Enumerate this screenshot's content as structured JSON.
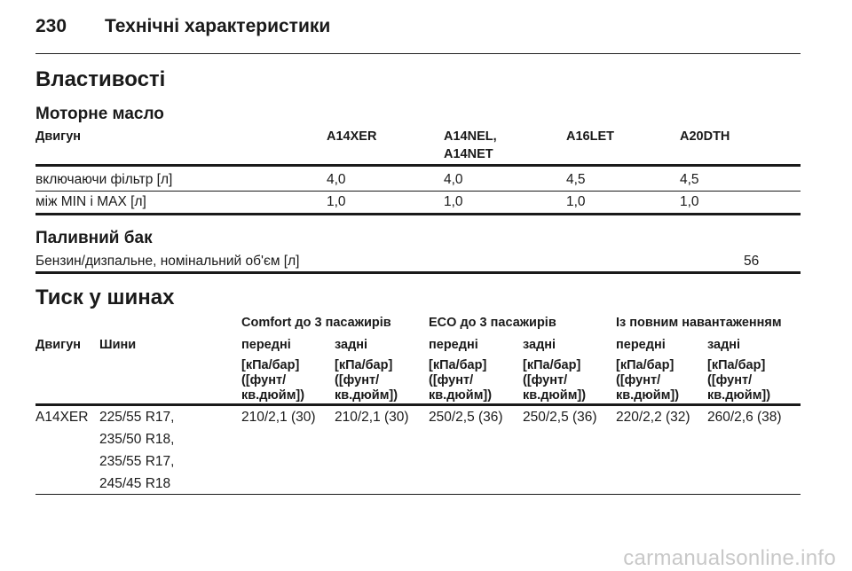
{
  "header": {
    "page_number": "230",
    "title": "Технічні характеристики"
  },
  "properties": {
    "title": "Властивості"
  },
  "engine_oil": {
    "title": "Моторне масло",
    "col_engine": "Двигун",
    "engines": [
      "A14XER",
      "A14NEL,",
      "A16LET",
      "A20DTH"
    ],
    "engine_2_line2": "A14NET",
    "rows": [
      {
        "label": "включаючи фільтр [л]",
        "values": [
          "4,0",
          "4,0",
          "4,5",
          "4,5"
        ]
      },
      {
        "label": "між MIN і MAX [л]",
        "values": [
          "1,0",
          "1,0",
          "1,0",
          "1,0"
        ]
      }
    ]
  },
  "fuel_tank": {
    "title": "Паливний бак",
    "label": "Бензин/дизпальне, номінальний об'єм [л]",
    "value": "56"
  },
  "tire_pressure": {
    "title": "Тиск у шинах",
    "groups": [
      "Comfort до 3 пасажирів",
      "ECO до 3 пасажирів",
      "Із повним навантаженням"
    ],
    "col_engine": "Двигун",
    "col_tires": "Шини",
    "front": "передні",
    "rear": "задні",
    "unit_line1": "[кПа/бар]",
    "unit_line2": "([фунт/",
    "unit_line3": "кв.дюйм])",
    "row": {
      "engine": "A14XER",
      "tires": [
        "225/55 R17,",
        "235/50 R18,",
        "235/55 R17,",
        "245/45 R18"
      ],
      "values": [
        "210/2,1 (30)",
        "210/2,1 (30)",
        "250/2,5 (36)",
        "250/2,5 (36)",
        "220/2,2 (32)",
        "260/2,6 (38)"
      ]
    }
  },
  "watermark": "carmanualsonline.info"
}
